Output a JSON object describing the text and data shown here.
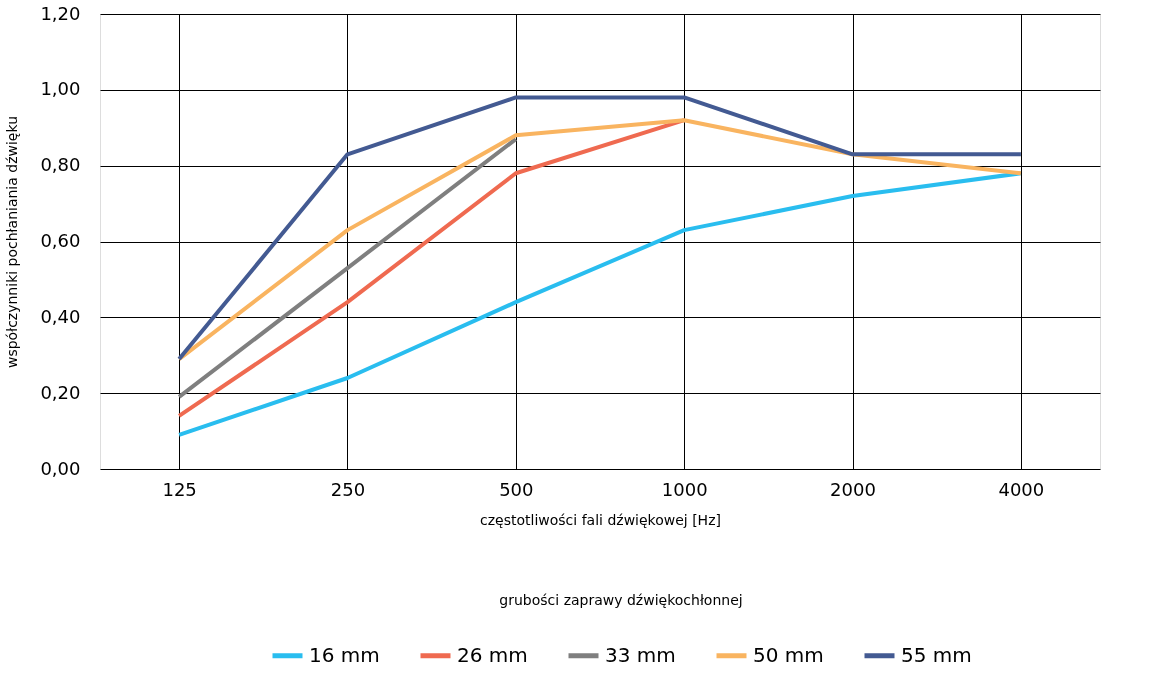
{
  "chart_data": {
    "type": "line",
    "xlabel": "częstotliwości fali dźwiękowej [Hz]",
    "ylabel": "współczynniki pochłaniania dźwięku",
    "legend_title": "grubości zaprawy dźwiękochłonnej",
    "categories": [
      "125",
      "250",
      "500",
      "1000",
      "2000",
      "4000"
    ],
    "series": [
      {
        "name": "16 mm",
        "color": "#29bdef",
        "values": [
          0.09,
          0.24,
          0.44,
          0.63,
          0.72,
          0.78
        ]
      },
      {
        "name": "26 mm",
        "color": "#ef6a50",
        "values": [
          0.14,
          0.44,
          0.78,
          0.92,
          null,
          null
        ]
      },
      {
        "name": "33 mm",
        "color": "#7f7f7f",
        "values": [
          0.19,
          0.53,
          0.87,
          null,
          null,
          null
        ]
      },
      {
        "name": "50 mm",
        "color": "#f9b460",
        "values": [
          0.29,
          0.63,
          0.88,
          0.92,
          0.83,
          0.78
        ]
      },
      {
        "name": "55 mm",
        "color": "#435a92",
        "values": [
          0.29,
          0.83,
          0.98,
          0.98,
          0.83,
          0.83
        ]
      }
    ],
    "ylim": [
      0,
      1.2
    ],
    "yticks": [
      {
        "value": 0,
        "label": "0,00"
      },
      {
        "value": 0.2,
        "label": "0,20"
      },
      {
        "value": 0.4,
        "label": "0,40"
      },
      {
        "value": 0.6,
        "label": "0,60"
      },
      {
        "value": 0.8,
        "label": "0,80"
      },
      {
        "value": 1.0,
        "label": "1,00"
      },
      {
        "value": 1.2,
        "label": "1,20"
      }
    ],
    "grid": true,
    "legend": "bottom",
    "marker": "none",
    "line_style": "solid"
  }
}
